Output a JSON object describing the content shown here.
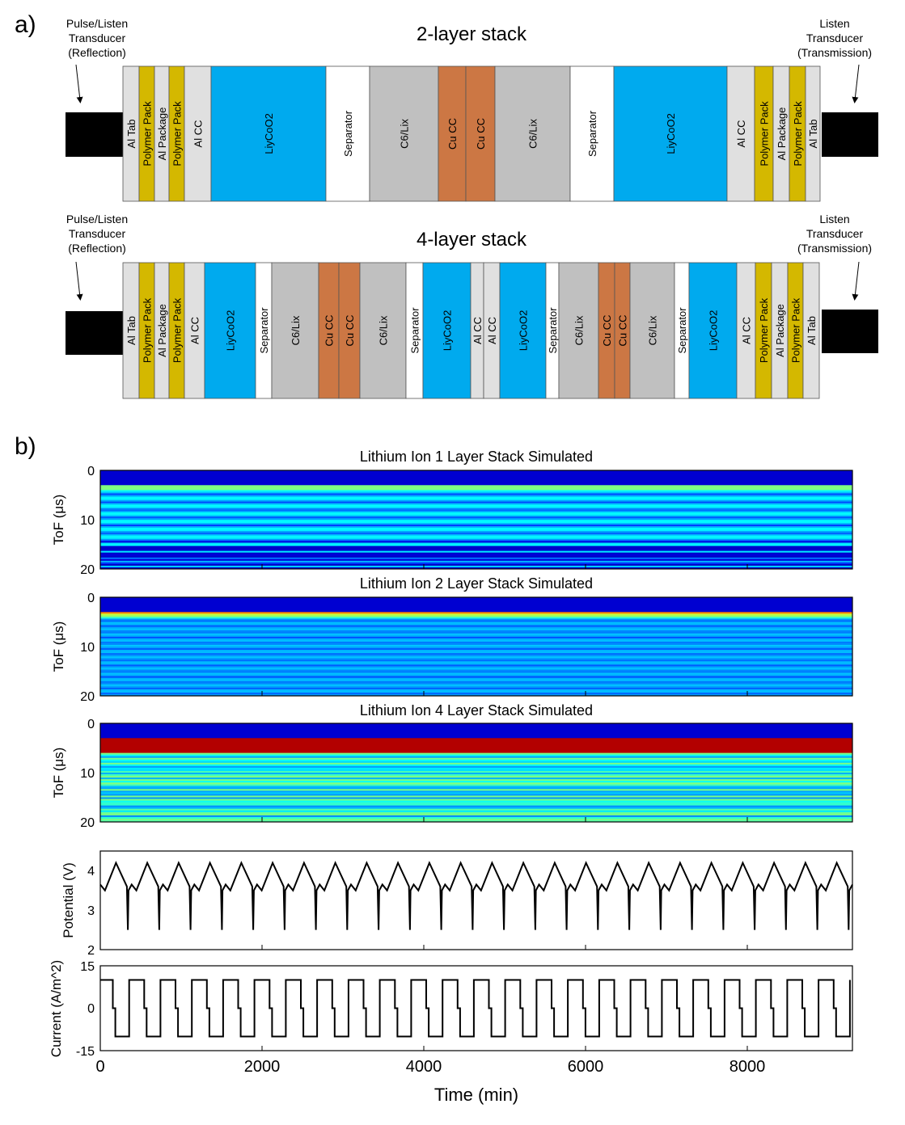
{
  "panel_a": {
    "label": "a)",
    "left_transducer": [
      "Pulse/Listen",
      "Transducer",
      "(Reflection)"
    ],
    "right_transducer": [
      "Listen",
      "Transducer",
      "(Transmission)"
    ],
    "stacks": [
      {
        "title": "2-layer stack",
        "layers": [
          {
            "name": "Al Tab",
            "material": "al"
          },
          {
            "name": "Polymer Pack",
            "material": "polymer"
          },
          {
            "name": "Al Package",
            "material": "al"
          },
          {
            "name": "Polymer Pack",
            "material": "polymer"
          },
          {
            "name": "Al CC",
            "material": "al"
          },
          {
            "name": "LiyCoO2",
            "material": "cathode"
          },
          {
            "name": "Separator",
            "material": "separator"
          },
          {
            "name": "C6/Lix",
            "material": "anode"
          },
          {
            "name": "Cu CC",
            "material": "copper"
          },
          {
            "name": "Cu CC",
            "material": "copper"
          },
          {
            "name": "C6/Lix",
            "material": "anode"
          },
          {
            "name": "Separator",
            "material": "separator"
          },
          {
            "name": "LiyCoO2",
            "material": "cathode"
          },
          {
            "name": "Al CC",
            "material": "al"
          },
          {
            "name": "Polymer Pack",
            "material": "polymer"
          },
          {
            "name": "Al Package",
            "material": "al"
          },
          {
            "name": "Polymer Pack",
            "material": "polymer"
          },
          {
            "name": "Al Tab",
            "material": "al"
          }
        ]
      },
      {
        "title": "4-layer stack",
        "layers": [
          {
            "name": "Al Tab",
            "material": "al"
          },
          {
            "name": "Polymer Pack",
            "material": "polymer"
          },
          {
            "name": "Al Package",
            "material": "al"
          },
          {
            "name": "Polymer Pack",
            "material": "polymer"
          },
          {
            "name": "Al CC",
            "material": "al"
          },
          {
            "name": "LiyCoO2",
            "material": "cathode"
          },
          {
            "name": "Separator",
            "material": "separator"
          },
          {
            "name": "C6/Lix",
            "material": "anode"
          },
          {
            "name": "Cu CC",
            "material": "copper"
          },
          {
            "name": "Cu CC",
            "material": "copper"
          },
          {
            "name": "C6/Lix",
            "material": "anode"
          },
          {
            "name": "Separator",
            "material": "separator"
          },
          {
            "name": "LiyCoO2",
            "material": "cathode"
          },
          {
            "name": "Al CC",
            "material": "al"
          },
          {
            "name": "Al CC",
            "material": "al"
          },
          {
            "name": "LiyCoO2",
            "material": "cathode"
          },
          {
            "name": "Separator",
            "material": "separator"
          },
          {
            "name": "C6/Lix",
            "material": "anode"
          },
          {
            "name": "Cu CC",
            "material": "copper"
          },
          {
            "name": "Cu CC",
            "material": "copper"
          },
          {
            "name": "C6/Lix",
            "material": "anode"
          },
          {
            "name": "Separator",
            "material": "separator"
          },
          {
            "name": "LiyCoO2",
            "material": "cathode"
          },
          {
            "name": "Al CC",
            "material": "al"
          },
          {
            "name": "Polymer Pack",
            "material": "polymer"
          },
          {
            "name": "Al Package",
            "material": "al"
          },
          {
            "name": "Polymer Pack",
            "material": "polymer"
          },
          {
            "name": "Al Tab",
            "material": "al"
          }
        ]
      }
    ],
    "colors": {
      "al": "#e0e0e0",
      "polymer": "#d4b800",
      "cathode": "#00aaee",
      "separator": "#ffffff",
      "anode": "#c0c0c0",
      "copper": "#cc7744",
      "transducer": "#000000"
    }
  },
  "panel_b": {
    "label": "b)",
    "heatmaps": [
      {
        "title": "Lithium Ion 1 Layer Stack Simulated",
        "ylabel": "ToF (μs)",
        "yticks": [
          "0",
          "10",
          "20"
        ],
        "ylim": [
          0,
          20
        ]
      },
      {
        "title": "Lithium Ion 2 Layer Stack Simulated",
        "ylabel": "ToF (μs)",
        "yticks": [
          "0",
          "10",
          "20"
        ],
        "ylim": [
          0,
          20
        ]
      },
      {
        "title": "Lithium Ion 4 Layer Stack Simulated",
        "ylabel": "ToF (μs)",
        "yticks": [
          "0",
          "10",
          "20"
        ],
        "ylim": [
          0,
          20
        ]
      }
    ],
    "potential": {
      "ylabel": "Potential (V)",
      "yticks": [
        "2",
        "3",
        "4"
      ],
      "ylim": [
        2,
        4.5
      ],
      "vmax": 4.2,
      "vdrop": 3.5,
      "vmin": 2.5
    },
    "current": {
      "ylabel": "Current (A/m^2)",
      "yticks": [
        "-15",
        "0",
        "15"
      ],
      "ylim": [
        -15,
        15
      ],
      "amplitude": 10
    },
    "xaxis": {
      "label": "Time (min)",
      "ticks": [
        "0",
        "2000",
        "4000",
        "6000",
        "8000"
      ],
      "xlim": [
        0,
        9300
      ],
      "cycles": 24
    }
  },
  "chart_data": [
    {
      "type": "heatmap",
      "title": "Lithium Ion 1 Layer Stack Simulated",
      "ylabel": "ToF (μs)",
      "xlim": [
        0,
        9300
      ],
      "ylim": [
        0,
        20
      ]
    },
    {
      "type": "heatmap",
      "title": "Lithium Ion 2 Layer Stack Simulated",
      "ylabel": "ToF (μs)",
      "xlim": [
        0,
        9300
      ],
      "ylim": [
        0,
        20
      ]
    },
    {
      "type": "heatmap",
      "title": "Lithium Ion 4 Layer Stack Simulated",
      "ylabel": "ToF (μs)",
      "xlim": [
        0,
        9300
      ],
      "ylim": [
        0,
        20
      ]
    },
    {
      "type": "line",
      "ylabel": "Potential (V)",
      "xlabel": "Time (min)",
      "xlim": [
        0,
        9300
      ],
      "ylim": [
        2,
        4.5
      ],
      "cycles": 24,
      "vmax": 4.2,
      "vmin": 2.5
    },
    {
      "type": "line",
      "ylabel": "Current (A/m^2)",
      "xlabel": "Time (min)",
      "xlim": [
        0,
        9300
      ],
      "ylim": [
        -15,
        15
      ],
      "cycles": 24,
      "values": [
        10,
        0,
        -10
      ]
    }
  ]
}
